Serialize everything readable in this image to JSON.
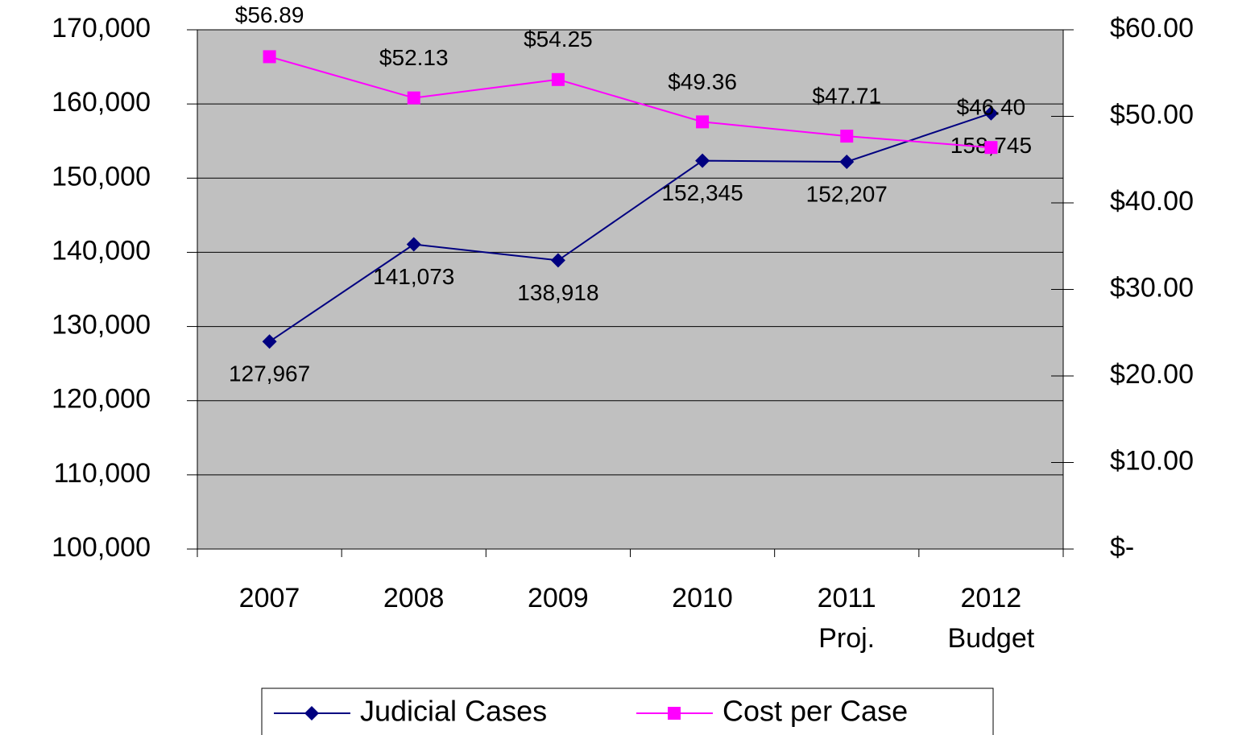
{
  "chart_data": {
    "type": "line",
    "categories": [
      "2007",
      "2008",
      "2009",
      "2010",
      "2011\nProj.",
      "2012\nBudget"
    ],
    "series": [
      {
        "name": "Judicial Cases",
        "color": "#000080",
        "marker": "diamond",
        "values": [
          127967,
          141073,
          138918,
          152345,
          152207,
          158745
        ],
        "value_labels": [
          "127,967",
          "141,073",
          "138,918",
          "152,345",
          "152,207",
          "158,745"
        ]
      },
      {
        "name": "Cost per Case",
        "color": "#ff00ff",
        "marker": "square",
        "axis": "y2",
        "values": [
          56.89,
          52.13,
          54.25,
          49.36,
          47.71,
          46.4
        ],
        "value_labels": [
          "$56.89",
          "$52.13",
          "$54.25",
          "$49.36",
          "$47.71",
          "$46.40"
        ]
      }
    ],
    "ylim": [
      100000,
      170000
    ],
    "yticks": [
      {
        "value": 100000,
        "label": "100,000"
      },
      {
        "value": 110000,
        "label": "110,000"
      },
      {
        "value": 120000,
        "label": "120,000"
      },
      {
        "value": 130000,
        "label": "130,000"
      },
      {
        "value": 140000,
        "label": "140,000"
      },
      {
        "value": 150000,
        "label": "150,000"
      },
      {
        "value": 160000,
        "label": "160,000"
      },
      {
        "value": 170000,
        "label": "170,000"
      }
    ],
    "y2lim": [
      0,
      60
    ],
    "y2ticks": [
      {
        "value": 0,
        "label": "$-"
      },
      {
        "value": 10,
        "label": "$10.00"
      },
      {
        "value": 20,
        "label": "$20.00"
      },
      {
        "value": 30,
        "label": "$30.00"
      },
      {
        "value": 40,
        "label": "$40.00"
      },
      {
        "value": 50,
        "label": "$50.00"
      },
      {
        "value": 60,
        "label": "$60.00"
      }
    ],
    "grid": true,
    "legend": "bottom"
  }
}
